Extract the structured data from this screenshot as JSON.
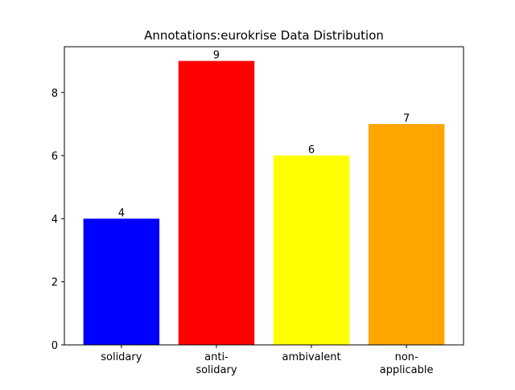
{
  "chart_data": {
    "type": "bar",
    "title": "Annotations:eurokrise Data Distribution",
    "xlabel": "",
    "ylabel": "",
    "categories": [
      "solidary",
      "anti-\nsolidary",
      "ambivalent",
      "non-\napplicable"
    ],
    "values": [
      4,
      9,
      6,
      7
    ],
    "colors": [
      "#0000ff",
      "#ff0000",
      "#ffff00",
      "#ffa500"
    ],
    "data_labels": [
      "4",
      "9",
      "6",
      "7"
    ],
    "ylim": [
      0,
      9.45
    ],
    "yticks": [
      0,
      2,
      4,
      6,
      8
    ],
    "ytick_labels": [
      "0",
      "2",
      "4",
      "6",
      "8"
    ],
    "grid": false,
    "legend": "none"
  }
}
